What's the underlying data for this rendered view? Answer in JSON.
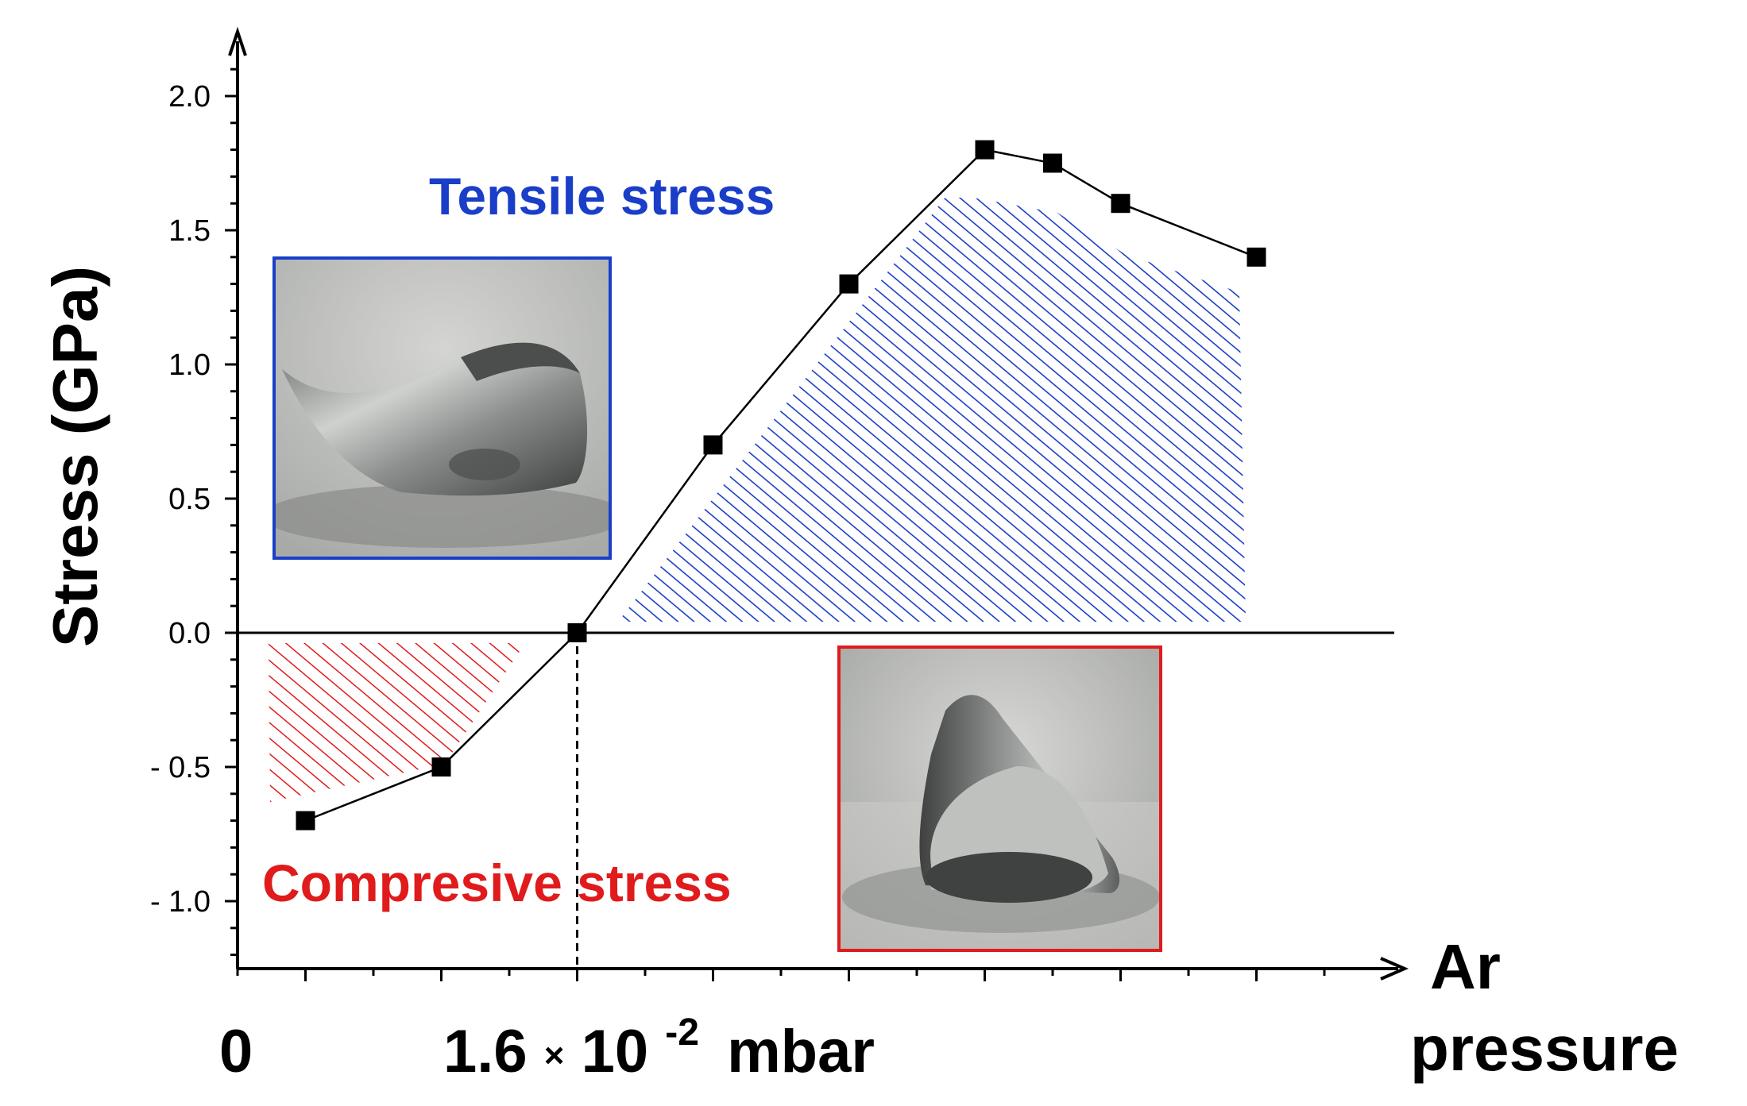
{
  "chart_data": {
    "type": "line",
    "title": "",
    "xlabel": "Ar pressure",
    "xlabel_lines": [
      "Ar",
      "pressure"
    ],
    "ylabel": "Stress (GPa)",
    "ylim": [
      -1.25,
      2.2
    ],
    "x_range": [
      0,
      8.3
    ],
    "y_ticks": [
      2.0,
      1.5,
      1.0,
      0.5,
      0.0,
      -0.5,
      -1.0
    ],
    "y_tick_labels": [
      "2.0",
      "1.5",
      "1.0",
      "0.5",
      "0.0",
      "- 0.5",
      "- 1.0"
    ],
    "x_tick_labels": {
      "origin": "0",
      "mark_mantissa": "1.6",
      "mark_times": "×",
      "mark_base": "10",
      "mark_exponent": "-2",
      "mark_unit": "mbar"
    },
    "x_reference_value": 2.5,
    "series": [
      {
        "name": "Stress",
        "x": [
          0.5,
          1.5,
          2.5,
          3.5,
          4.5,
          5.5,
          6.0,
          6.5,
          7.5
        ],
        "y": [
          -0.7,
          -0.5,
          0.0,
          0.7,
          1.3,
          1.8,
          1.75,
          1.6,
          1.4
        ]
      }
    ],
    "regions": [
      {
        "name": "tensile",
        "label": "Tensile stress",
        "color": "#1a3ec8"
      },
      {
        "name": "compressive",
        "label": "Compresive stress",
        "color": "#e01b1b"
      }
    ],
    "insets": [
      {
        "name": "tensile-sample-photo",
        "frame_color": "#1a3ec8"
      },
      {
        "name": "compressive-sample-photo",
        "frame_color": "#e01b1b"
      }
    ]
  }
}
